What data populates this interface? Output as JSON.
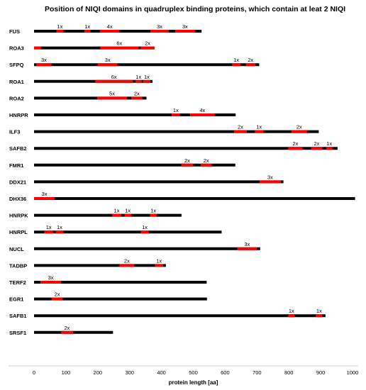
{
  "chart_data": {
    "type": "bar",
    "title": "Position of NIQI domains in quadruplex binding proteins, which contain at leat 2 NIQI",
    "xlabel": "protein length [aa]",
    "ylabel": "",
    "xlim": [
      0,
      1000
    ],
    "xticks": [
      0,
      100,
      200,
      300,
      400,
      500,
      600,
      700,
      800,
      900,
      1000
    ],
    "grid": false,
    "colors": {
      "protein": "#000000",
      "domain": "#ff0000"
    },
    "proteins": [
      {
        "name": "FUS",
        "length": 526,
        "domains": [
          {
            "start": 70,
            "end": 92,
            "label": "1x"
          },
          {
            "start": 158,
            "end": 177,
            "label": "1x"
          },
          {
            "start": 207,
            "end": 268,
            "label": "4x"
          },
          {
            "start": 365,
            "end": 423,
            "label": "3x"
          },
          {
            "start": 443,
            "end": 505,
            "label": "3x"
          }
        ]
      },
      {
        "name": "ROA3",
        "length": 378,
        "domains": [
          {
            "start": 0,
            "end": 22,
            "label": ""
          },
          {
            "start": 208,
            "end": 328,
            "label": "6x"
          },
          {
            "start": 335,
            "end": 378,
            "label": "2x"
          }
        ]
      },
      {
        "name": "SFPQ",
        "length": 707,
        "domains": [
          {
            "start": 7,
            "end": 55,
            "label": "3x"
          },
          {
            "start": 200,
            "end": 262,
            "label": "3x"
          },
          {
            "start": 622,
            "end": 648,
            "label": "1x"
          },
          {
            "start": 665,
            "end": 695,
            "label": "2x"
          }
        ]
      },
      {
        "name": "ROA1",
        "length": 372,
        "domains": [
          {
            "start": 192,
            "end": 310,
            "label": "6x"
          },
          {
            "start": 318,
            "end": 338,
            "label": "1x"
          },
          {
            "start": 343,
            "end": 365,
            "label": "1x"
          }
        ]
      },
      {
        "name": "ROA2",
        "length": 353,
        "domains": [
          {
            "start": 198,
            "end": 292,
            "label": "5x"
          },
          {
            "start": 305,
            "end": 340,
            "label": "2x"
          }
        ]
      },
      {
        "name": "HNRPR",
        "length": 633,
        "domains": [
          {
            "start": 432,
            "end": 458,
            "label": "1x"
          },
          {
            "start": 490,
            "end": 567,
            "label": "4x"
          }
        ]
      },
      {
        "name": "ILF3",
        "length": 894,
        "domains": [
          {
            "start": 628,
            "end": 668,
            "label": "2x"
          },
          {
            "start": 693,
            "end": 720,
            "label": "1x"
          },
          {
            "start": 808,
            "end": 857,
            "label": "2x"
          }
        ]
      },
      {
        "name": "SAFB2",
        "length": 953,
        "domains": [
          {
            "start": 798,
            "end": 843,
            "label": "2x"
          },
          {
            "start": 870,
            "end": 905,
            "label": "2x"
          },
          {
            "start": 917,
            "end": 937,
            "label": "1x"
          }
        ]
      },
      {
        "name": "FMR1",
        "length": 632,
        "domains": [
          {
            "start": 462,
            "end": 500,
            "label": "2x"
          },
          {
            "start": 523,
            "end": 558,
            "label": "2x"
          }
        ]
      },
      {
        "name": "DDX21",
        "length": 783,
        "domains": [
          {
            "start": 708,
            "end": 775,
            "label": "3x"
          }
        ]
      },
      {
        "name": "DHX36",
        "length": 1008,
        "domains": [
          {
            "start": 0,
            "end": 65,
            "label": "3x"
          }
        ]
      },
      {
        "name": "HNRPK",
        "length": 463,
        "domains": [
          {
            "start": 245,
            "end": 274,
            "label": "1x"
          },
          {
            "start": 284,
            "end": 305,
            "label": "1x"
          },
          {
            "start": 364,
            "end": 385,
            "label": "1x"
          }
        ]
      },
      {
        "name": "HNRPL",
        "length": 589,
        "domains": [
          {
            "start": 32,
            "end": 60,
            "label": "1x"
          },
          {
            "start": 68,
            "end": 92,
            "label": "1x"
          },
          {
            "start": 335,
            "end": 360,
            "label": "1x"
          }
        ]
      },
      {
        "name": "NUCL",
        "length": 710,
        "domains": [
          {
            "start": 638,
            "end": 700,
            "label": "3x"
          }
        ]
      },
      {
        "name": "TADBP",
        "length": 414,
        "domains": [
          {
            "start": 268,
            "end": 315,
            "label": "2x"
          },
          {
            "start": 380,
            "end": 405,
            "label": "1x"
          }
        ]
      },
      {
        "name": "TERF2",
        "length": 542,
        "domains": [
          {
            "start": 20,
            "end": 85,
            "label": "3x"
          }
        ]
      },
      {
        "name": "EGR1",
        "length": 543,
        "domains": [
          {
            "start": 55,
            "end": 90,
            "label": "2x"
          }
        ]
      },
      {
        "name": "SAFB1",
        "length": 915,
        "domains": [
          {
            "start": 798,
            "end": 818,
            "label": "1x"
          },
          {
            "start": 885,
            "end": 905,
            "label": "1x"
          }
        ]
      },
      {
        "name": "SRSF1",
        "length": 248,
        "domains": [
          {
            "start": 85,
            "end": 122,
            "label": "2x"
          }
        ]
      }
    ]
  }
}
